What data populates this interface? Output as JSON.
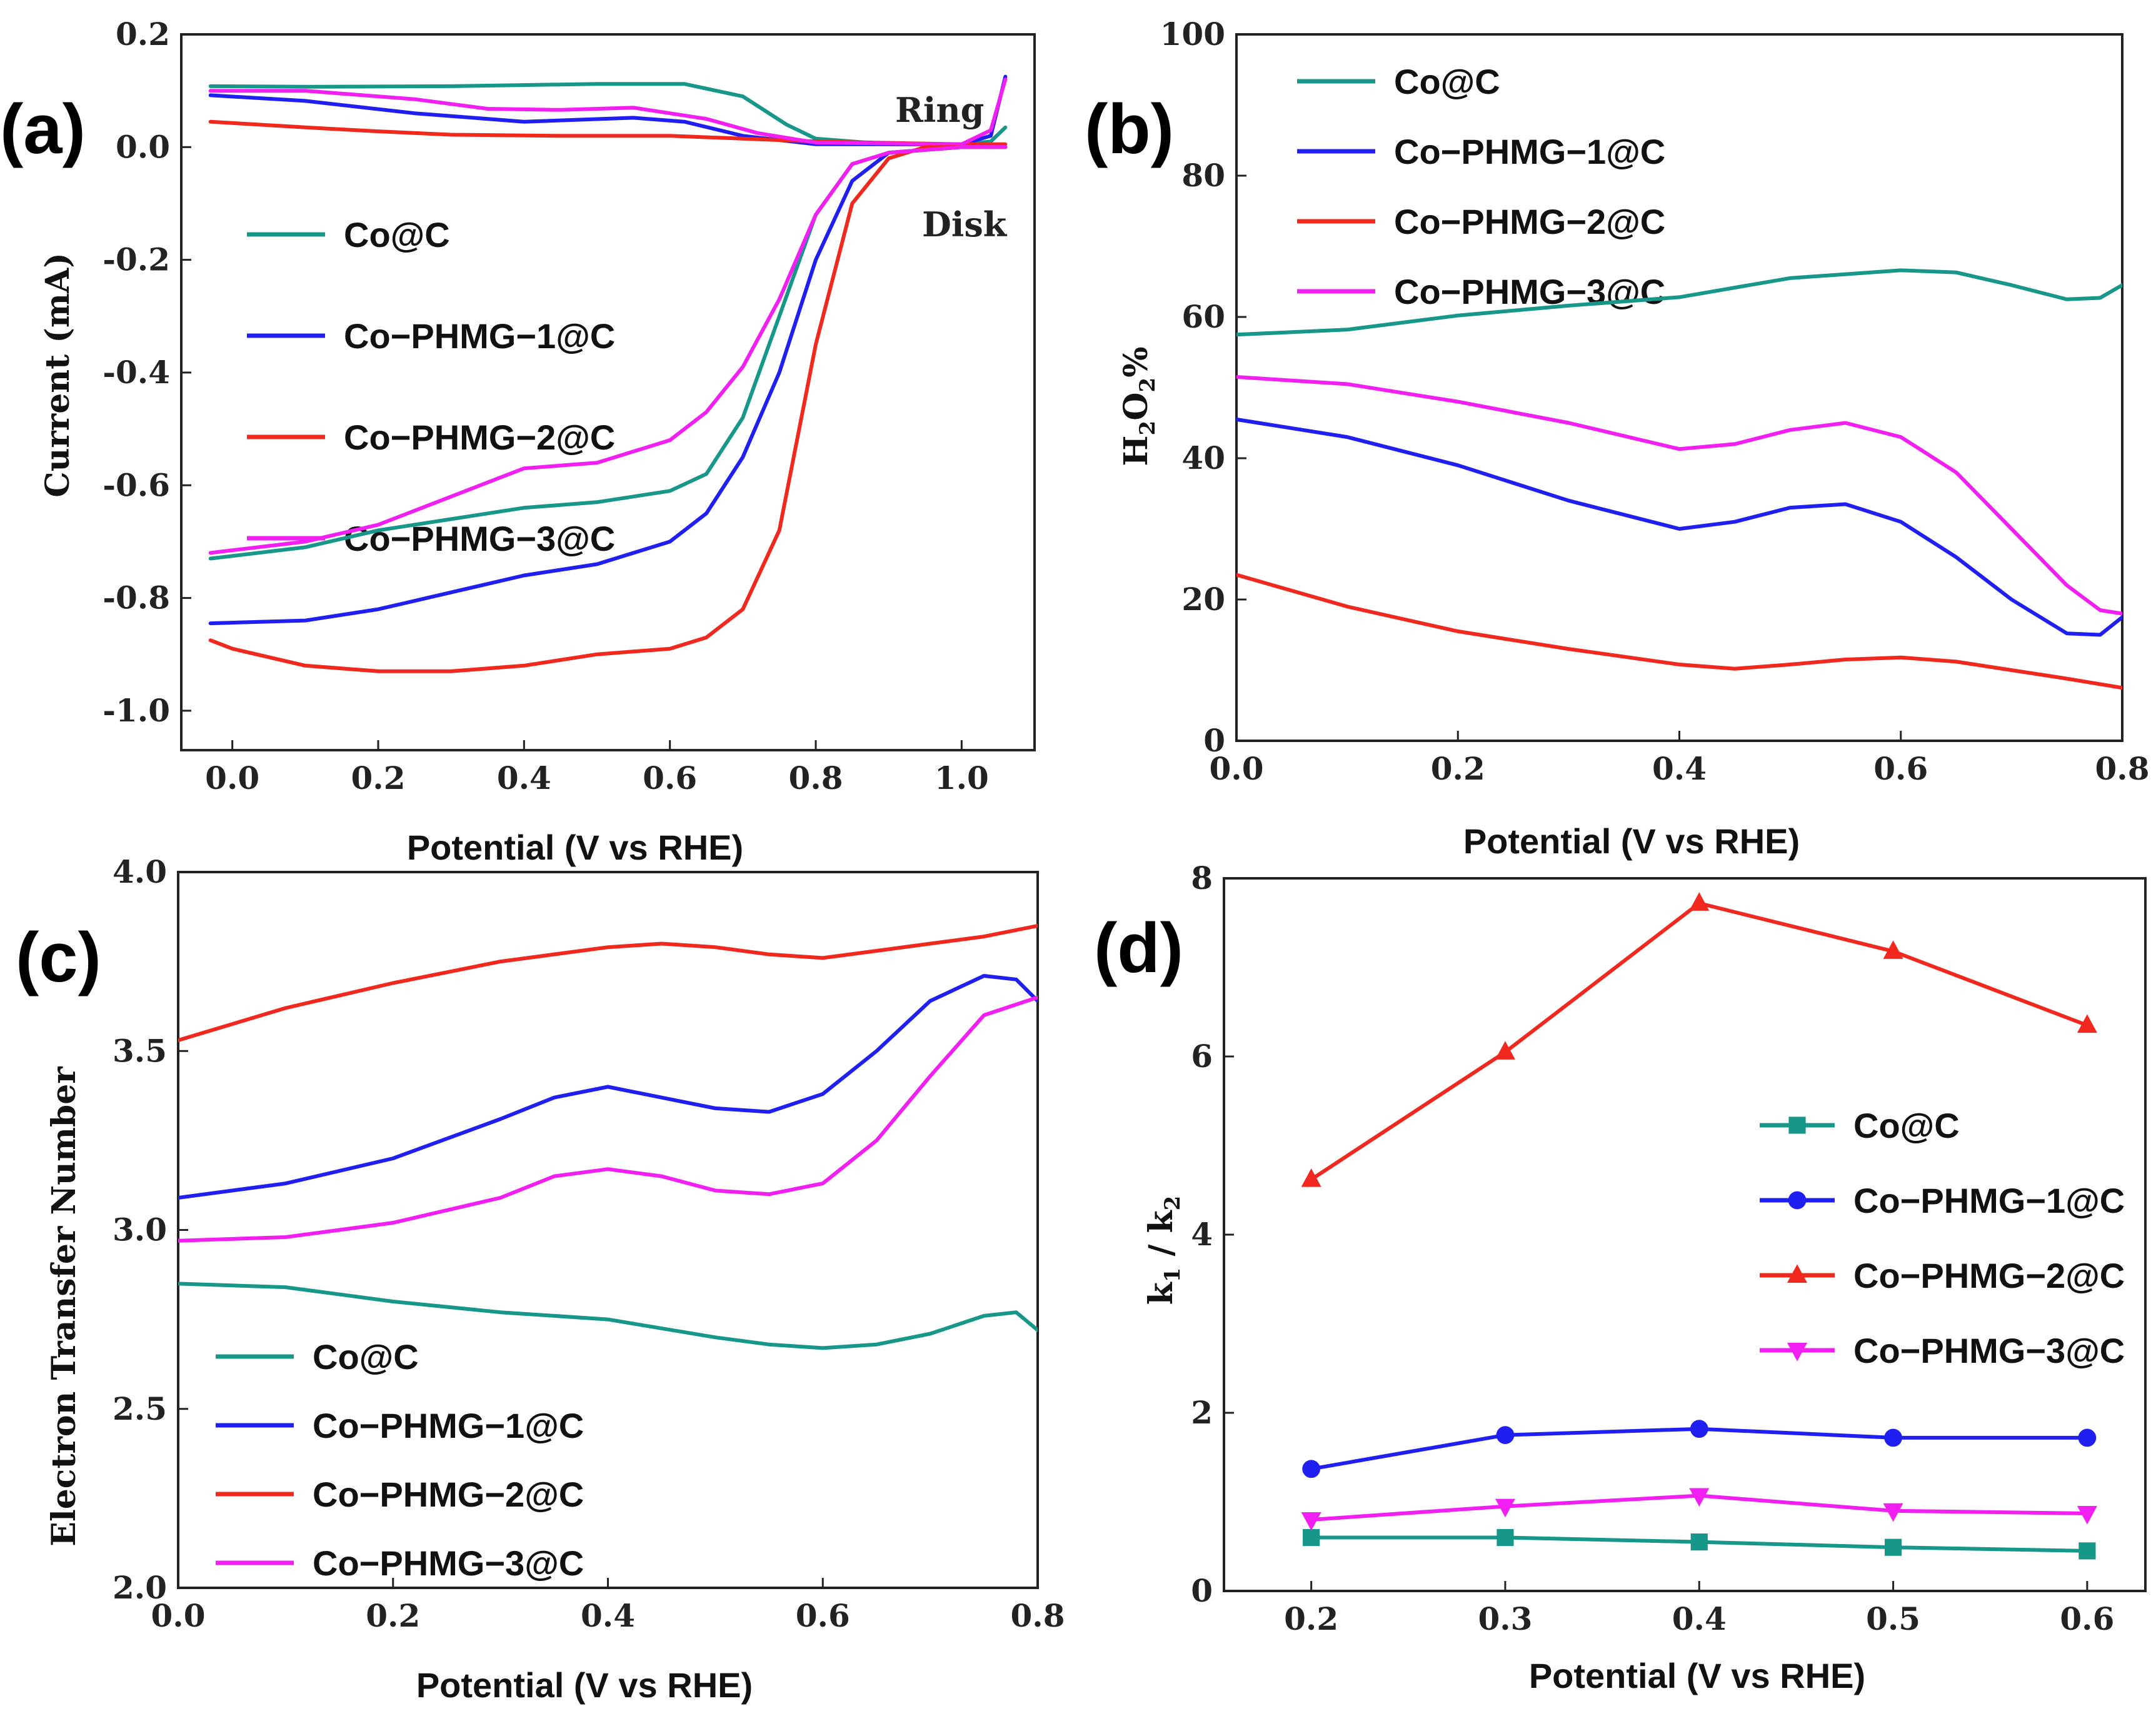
{
  "colors": {
    "Co@C": "#17968a",
    "Co-PHMG-1@C": "#1f1ff2",
    "Co-PHMG-2@C": "#f0281e",
    "Co-PHMG-3@C": "#f21ff2"
  },
  "chart_data": [
    {
      "id": "a",
      "panel_label": "(a)",
      "type": "line",
      "title": "",
      "xlabel": "Potential (V vs RHE)",
      "ylabel": "Current (mA)",
      "xlim": [
        -0.07,
        1.1
      ],
      "ylim": [
        -1.07,
        0.2
      ],
      "xticks": [
        0.0,
        0.2,
        0.4,
        0.6,
        0.8,
        1.0
      ],
      "xtick_labels": [
        "0.0",
        "0.2",
        "0.4",
        "0.6",
        "0.8",
        "1.0"
      ],
      "yticks": [
        0.2,
        0.0,
        -0.2,
        -0.4,
        -0.6,
        -0.8,
        -1.0
      ],
      "ytick_labels": [
        "0.2",
        "0.0",
        "-0.2",
        "-0.4",
        "-0.6",
        "-0.8",
        "-1.0"
      ],
      "annotations": [
        "Ring",
        "Disk"
      ],
      "legend": [
        "Co@C",
        "Co−PHMG−1@C",
        "Co−PHMG−2@C",
        "Co−PHMG−3@C"
      ],
      "legend_position": "middle-left",
      "series": [
        {
          "name": "Co@C ring",
          "key": "Co@C",
          "x": [
            -0.03,
            0.1,
            0.3,
            0.5,
            0.62,
            0.7,
            0.76,
            0.8,
            0.9,
            1.0,
            1.04,
            1.06
          ],
          "y": [
            0.108,
            0.107,
            0.108,
            0.112,
            0.112,
            0.09,
            0.04,
            0.015,
            0.005,
            0.005,
            0.01,
            0.035
          ]
        },
        {
          "name": "Co-PHMG-1@C ring",
          "key": "Co-PHMG-1@C",
          "x": [
            -0.03,
            0.1,
            0.25,
            0.4,
            0.55,
            0.62,
            0.7,
            0.8,
            0.9,
            1.0,
            1.04,
            1.06
          ],
          "y": [
            0.092,
            0.082,
            0.06,
            0.045,
            0.052,
            0.045,
            0.02,
            0.005,
            0.005,
            0.005,
            0.02,
            0.125
          ]
        },
        {
          "name": "Co-PHMG-2@C ring",
          "key": "Co-PHMG-2@C",
          "x": [
            -0.03,
            0.1,
            0.2,
            0.3,
            0.45,
            0.6,
            0.8,
            1.0,
            1.06
          ],
          "y": [
            0.045,
            0.035,
            0.028,
            0.022,
            0.02,
            0.02,
            0.01,
            0.005,
            0.005
          ]
        },
        {
          "name": "Co-PHMG-3@C ring",
          "key": "Co-PHMG-3@C",
          "x": [
            -0.03,
            0.1,
            0.25,
            0.35,
            0.45,
            0.55,
            0.65,
            0.72,
            0.8,
            1.0,
            1.04,
            1.06
          ],
          "y": [
            0.1,
            0.1,
            0.085,
            0.068,
            0.066,
            0.07,
            0.05,
            0.025,
            0.008,
            0.005,
            0.03,
            0.12
          ]
        },
        {
          "name": "Co@C disk",
          "key": "Co@C",
          "x": [
            -0.03,
            0.1,
            0.2,
            0.3,
            0.4,
            0.5,
            0.6,
            0.65,
            0.7,
            0.75,
            0.8,
            0.85,
            0.9,
            1.0,
            1.06
          ],
          "y": [
            -0.73,
            -0.71,
            -0.68,
            -0.66,
            -0.64,
            -0.63,
            -0.61,
            -0.58,
            -0.48,
            -0.3,
            -0.12,
            -0.03,
            -0.01,
            0.0,
            0.0
          ]
        },
        {
          "name": "Co-PHMG-1@C disk",
          "key": "Co-PHMG-1@C",
          "x": [
            -0.03,
            0.1,
            0.2,
            0.3,
            0.4,
            0.5,
            0.6,
            0.65,
            0.7,
            0.75,
            0.8,
            0.85,
            0.9,
            1.0,
            1.06
          ],
          "y": [
            -0.845,
            -0.84,
            -0.82,
            -0.79,
            -0.76,
            -0.74,
            -0.7,
            -0.65,
            -0.55,
            -0.4,
            -0.2,
            -0.06,
            -0.01,
            0.0,
            0.0
          ]
        },
        {
          "name": "Co-PHMG-2@C disk",
          "key": "Co-PHMG-2@C",
          "x": [
            -0.03,
            0.0,
            0.1,
            0.2,
            0.3,
            0.4,
            0.5,
            0.6,
            0.65,
            0.7,
            0.75,
            0.8,
            0.85,
            0.9,
            0.95,
            1.0,
            1.06
          ],
          "y": [
            -0.875,
            -0.89,
            -0.92,
            -0.93,
            -0.93,
            -0.92,
            -0.9,
            -0.89,
            -0.87,
            -0.82,
            -0.68,
            -0.35,
            -0.1,
            -0.02,
            0.0,
            0.0,
            0.0
          ]
        },
        {
          "name": "Co-PHMG-3@C disk",
          "key": "Co-PHMG-3@C",
          "x": [
            -0.03,
            0.1,
            0.2,
            0.3,
            0.4,
            0.5,
            0.6,
            0.65,
            0.7,
            0.75,
            0.8,
            0.85,
            0.9,
            1.0,
            1.06
          ],
          "y": [
            -0.72,
            -0.7,
            -0.67,
            -0.62,
            -0.57,
            -0.56,
            -0.52,
            -0.47,
            -0.39,
            -0.27,
            -0.12,
            -0.03,
            -0.01,
            0.0,
            0.0
          ]
        }
      ]
    },
    {
      "id": "b",
      "panel_label": "(b)",
      "type": "line",
      "title": "",
      "xlabel": "Potential (V vs RHE)",
      "ylabel": "H2O2%",
      "xlim": [
        0.0,
        0.8
      ],
      "ylim": [
        0,
        100
      ],
      "xticks": [
        0.0,
        0.2,
        0.4,
        0.6,
        0.8
      ],
      "xtick_labels": [
        "0.0",
        "0.2",
        "0.4",
        "0.6",
        "0.8"
      ],
      "yticks": [
        0,
        20,
        40,
        60,
        80,
        100
      ],
      "ytick_labels": [
        "0",
        "20",
        "40",
        "60",
        "80",
        "100"
      ],
      "legend": [
        "Co@C",
        "Co−PHMG−1@C",
        "Co−PHMG−2@C",
        "Co−PHMG−3@C"
      ],
      "legend_position": "top-left",
      "series": [
        {
          "name": "Co@C",
          "key": "Co@C",
          "x": [
            0.0,
            0.1,
            0.2,
            0.3,
            0.4,
            0.5,
            0.6,
            0.65,
            0.7,
            0.75,
            0.78,
            0.8
          ],
          "y": [
            57.5,
            58.2,
            60.2,
            61.6,
            62.8,
            65.5,
            66.6,
            66.3,
            64.5,
            62.5,
            62.7,
            64.5
          ]
        },
        {
          "name": "Co-PHMG-1@C",
          "key": "Co-PHMG-1@C",
          "x": [
            0.0,
            0.1,
            0.2,
            0.3,
            0.4,
            0.45,
            0.5,
            0.55,
            0.6,
            0.65,
            0.7,
            0.75,
            0.78,
            0.8
          ],
          "y": [
            45.5,
            43,
            39,
            34,
            30,
            31,
            33,
            33.5,
            31,
            26,
            20,
            15.2,
            15,
            17.5
          ]
        },
        {
          "name": "Co-PHMG-2@C",
          "key": "Co-PHMG-2@C",
          "x": [
            0.0,
            0.1,
            0.2,
            0.3,
            0.4,
            0.45,
            0.5,
            0.55,
            0.6,
            0.65,
            0.7,
            0.75,
            0.8
          ],
          "y": [
            23.5,
            19,
            15.5,
            13,
            10.8,
            10.2,
            10.8,
            11.5,
            11.8,
            11.2,
            10,
            8.8,
            7.5
          ]
        },
        {
          "name": "Co-PHMG-3@C",
          "key": "Co-PHMG-3@C",
          "x": [
            0.0,
            0.1,
            0.2,
            0.3,
            0.4,
            0.45,
            0.5,
            0.55,
            0.6,
            0.65,
            0.7,
            0.75,
            0.78,
            0.8
          ],
          "y": [
            51.5,
            50.5,
            48,
            45,
            41.3,
            42,
            44,
            45,
            43,
            38,
            30,
            22,
            18.5,
            18
          ]
        }
      ]
    },
    {
      "id": "c",
      "panel_label": "(c)",
      "type": "line",
      "title": "",
      "xlabel": "Potential (V vs RHE)",
      "ylabel": "Electron Transfer Number",
      "xlim": [
        0.0,
        0.8
      ],
      "ylim": [
        2.0,
        4.0
      ],
      "xticks": [
        0.0,
        0.2,
        0.4,
        0.6,
        0.8
      ],
      "xtick_labels": [
        "0.0",
        "0.2",
        "0.4",
        "0.6",
        "0.8"
      ],
      "yticks": [
        2.0,
        2.5,
        3.0,
        3.5,
        4.0
      ],
      "ytick_labels": [
        "2.0",
        "2.5",
        "3.0",
        "3.5",
        "4.0"
      ],
      "legend": [
        "Co@C",
        "Co−PHMG−1@C",
        "Co−PHMG−2@C",
        "Co−PHMG−3@C"
      ],
      "legend_position": "bottom-left",
      "series": [
        {
          "name": "Co@C",
          "key": "Co@C",
          "x": [
            0.0,
            0.1,
            0.2,
            0.3,
            0.4,
            0.5,
            0.55,
            0.6,
            0.65,
            0.7,
            0.75,
            0.78,
            0.8
          ],
          "y": [
            2.85,
            2.84,
            2.8,
            2.77,
            2.75,
            2.7,
            2.68,
            2.67,
            2.68,
            2.71,
            2.76,
            2.77,
            2.72
          ]
        },
        {
          "name": "Co-PHMG-1@C",
          "key": "Co-PHMG-1@C",
          "x": [
            0.0,
            0.1,
            0.2,
            0.3,
            0.35,
            0.4,
            0.45,
            0.5,
            0.55,
            0.6,
            0.65,
            0.7,
            0.75,
            0.78,
            0.8
          ],
          "y": [
            3.09,
            3.13,
            3.2,
            3.31,
            3.37,
            3.4,
            3.37,
            3.34,
            3.33,
            3.38,
            3.5,
            3.64,
            3.71,
            3.7,
            3.64
          ]
        },
        {
          "name": "Co-PHMG-2@C",
          "key": "Co-PHMG-2@C",
          "x": [
            0.0,
            0.1,
            0.2,
            0.3,
            0.4,
            0.45,
            0.5,
            0.55,
            0.6,
            0.65,
            0.7,
            0.75,
            0.8
          ],
          "y": [
            3.53,
            3.62,
            3.69,
            3.75,
            3.79,
            3.8,
            3.79,
            3.77,
            3.76,
            3.78,
            3.8,
            3.82,
            3.85
          ]
        },
        {
          "name": "Co-PHMG-3@C",
          "key": "Co-PHMG-3@C",
          "x": [
            0.0,
            0.1,
            0.2,
            0.3,
            0.35,
            0.4,
            0.45,
            0.5,
            0.55,
            0.6,
            0.65,
            0.7,
            0.75,
            0.8
          ],
          "y": [
            2.97,
            2.98,
            3.02,
            3.09,
            3.15,
            3.17,
            3.15,
            3.11,
            3.1,
            3.13,
            3.25,
            3.43,
            3.6,
            3.65
          ]
        }
      ]
    },
    {
      "id": "d",
      "panel_label": "(d)",
      "type": "line",
      "title": "",
      "xlabel": "Potential (V vs RHE)",
      "ylabel": "k1 / k2",
      "xlim": [
        0.155,
        0.63
      ],
      "ylim": [
        0,
        8
      ],
      "xticks": [
        0.2,
        0.3,
        0.4,
        0.5,
        0.6
      ],
      "xtick_labels": [
        "0.2",
        "0.3",
        "0.4",
        "0.5",
        "0.6"
      ],
      "yticks": [
        0,
        2,
        4,
        6,
        8
      ],
      "ytick_labels": [
        "0",
        "2",
        "4",
        "6",
        "8"
      ],
      "legend": [
        "Co@C",
        "Co−PHMG−1@C",
        "Co−PHMG−2@C",
        "Co−PHMG−3@C"
      ],
      "legend_position": "right",
      "series": [
        {
          "name": "Co@C",
          "key": "Co@C",
          "marker": "square",
          "x": [
            0.2,
            0.3,
            0.4,
            0.5,
            0.6
          ],
          "y": [
            0.6,
            0.6,
            0.55,
            0.49,
            0.45
          ]
        },
        {
          "name": "Co-PHMG-1@C",
          "key": "Co-PHMG-1@C",
          "marker": "circle",
          "x": [
            0.2,
            0.3,
            0.4,
            0.5,
            0.6
          ],
          "y": [
            1.37,
            1.75,
            1.82,
            1.72,
            1.72
          ]
        },
        {
          "name": "Co-PHMG-2@C",
          "key": "Co-PHMG-2@C",
          "marker": "triangle-up",
          "x": [
            0.2,
            0.3,
            0.4,
            0.5,
            0.6
          ],
          "y": [
            4.62,
            6.05,
            7.72,
            7.18,
            6.35
          ]
        },
        {
          "name": "Co-PHMG-3@C",
          "key": "Co-PHMG-3@C",
          "marker": "triangle-down",
          "x": [
            0.2,
            0.3,
            0.4,
            0.5,
            0.6
          ],
          "y": [
            0.8,
            0.95,
            1.07,
            0.9,
            0.87
          ]
        }
      ]
    }
  ]
}
